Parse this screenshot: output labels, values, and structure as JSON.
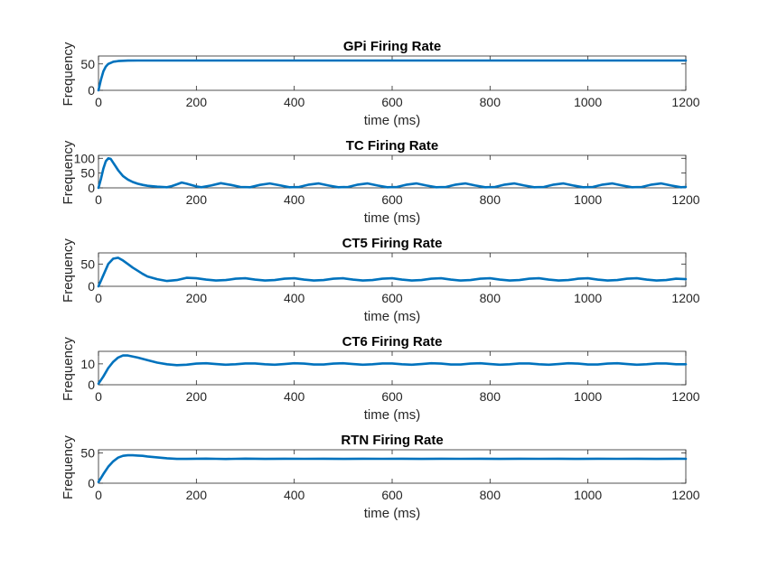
{
  "chart_data": [
    {
      "type": "line",
      "title": "GPi Firing Rate",
      "xlabel": "time (ms)",
      "ylabel": "Frequency",
      "xlim": [
        0,
        1200
      ],
      "ylim": [
        0,
        65
      ],
      "xticks": [
        0,
        200,
        400,
        600,
        800,
        1000,
        1200
      ],
      "yticks": [
        0,
        50
      ],
      "grid": false,
      "line_color": "#0072BD",
      "series": [
        {
          "x": [
            0,
            5,
            10,
            15,
            20,
            30,
            40,
            50,
            60,
            80,
            100,
            150,
            200,
            400,
            600,
            800,
            1000,
            1200
          ],
          "y": [
            0,
            20,
            36,
            45,
            50,
            54,
            55.5,
            56,
            56.3,
            56.5,
            56.5,
            56.5,
            56.5,
            56.5,
            56.5,
            56.5,
            56.5,
            56.5
          ]
        }
      ]
    },
    {
      "type": "line",
      "title": "TC Firing Rate",
      "xlabel": "time (ms)",
      "ylabel": "Frequency",
      "xlim": [
        0,
        1200
      ],
      "ylim": [
        0,
        110
      ],
      "xticks": [
        0,
        200,
        400,
        600,
        800,
        1000,
        1200
      ],
      "yticks": [
        0,
        50,
        100
      ],
      "grid": false,
      "line_color": "#0072BD",
      "series": [
        {
          "x": [
            0,
            5,
            10,
            15,
            20,
            25,
            30,
            40,
            50,
            60,
            70,
            80,
            90,
            100,
            120,
            140,
            150,
            160,
            170,
            180,
            200,
            210,
            230,
            250,
            270,
            290,
            310,
            330,
            350,
            370,
            390,
            410,
            430,
            450,
            470,
            490,
            510,
            530,
            550,
            570,
            590,
            610,
            630,
            650,
            670,
            690,
            710,
            730,
            750,
            770,
            790,
            810,
            830,
            850,
            870,
            890,
            910,
            930,
            950,
            970,
            990,
            1010,
            1030,
            1050,
            1070,
            1090,
            1110,
            1130,
            1150,
            1170,
            1190,
            1200
          ],
          "y": [
            0,
            30,
            65,
            90,
            100,
            98,
            85,
            60,
            40,
            28,
            20,
            14,
            10,
            7,
            4,
            2,
            6,
            12,
            18,
            14,
            5,
            2,
            8,
            16,
            10,
            3,
            2,
            10,
            15,
            9,
            2,
            3,
            11,
            15,
            8,
            2,
            3,
            11,
            15,
            8,
            2,
            3,
            11,
            15,
            8,
            2,
            3,
            11,
            15,
            8,
            2,
            3,
            11,
            15,
            8,
            2,
            3,
            11,
            15,
            8,
            2,
            3,
            11,
            15,
            8,
            2,
            3,
            11,
            15,
            8,
            2,
            3
          ]
        }
      ]
    },
    {
      "type": "line",
      "title": "CT5 Firing Rate",
      "xlabel": "time (ms)",
      "ylabel": "Frequency",
      "xlim": [
        0,
        1200
      ],
      "ylim": [
        0,
        75
      ],
      "xticks": [
        0,
        200,
        400,
        600,
        800,
        1000,
        1200
      ],
      "yticks": [
        0,
        50
      ],
      "grid": false,
      "line_color": "#0072BD",
      "series": [
        {
          "x": [
            0,
            10,
            20,
            30,
            40,
            50,
            60,
            70,
            80,
            90,
            100,
            120,
            140,
            160,
            180,
            200,
            220,
            240,
            260,
            280,
            300,
            320,
            340,
            360,
            380,
            400,
            420,
            440,
            460,
            480,
            500,
            520,
            540,
            560,
            580,
            600,
            620,
            640,
            660,
            680,
            700,
            720,
            740,
            760,
            780,
            800,
            820,
            840,
            860,
            880,
            900,
            920,
            940,
            960,
            980,
            1000,
            1020,
            1040,
            1060,
            1080,
            1100,
            1120,
            1140,
            1160,
            1180,
            1200
          ],
          "y": [
            0,
            25,
            50,
            62,
            64,
            58,
            50,
            42,
            35,
            28,
            22,
            16,
            12,
            14,
            19,
            18,
            15,
            13,
            14,
            17,
            18,
            15,
            13,
            14,
            17,
            18,
            15,
            13,
            14,
            17,
            18,
            15,
            13,
            14,
            17,
            18,
            15,
            13,
            14,
            17,
            18,
            15,
            13,
            14,
            17,
            18,
            15,
            13,
            14,
            17,
            18,
            15,
            13,
            14,
            17,
            18,
            15,
            13,
            14,
            17,
            18,
            15,
            13,
            14,
            17,
            16
          ]
        }
      ]
    },
    {
      "type": "line",
      "title": "CT6 Firing Rate",
      "xlabel": "time (ms)",
      "ylabel": "Frequency",
      "xlim": [
        0,
        1200
      ],
      "ylim": [
        0,
        16
      ],
      "xticks": [
        0,
        200,
        400,
        600,
        800,
        1000,
        1200
      ],
      "yticks": [
        0,
        10
      ],
      "grid": false,
      "line_color": "#0072BD",
      "series": [
        {
          "x": [
            0,
            10,
            20,
            30,
            40,
            50,
            60,
            80,
            100,
            120,
            140,
            160,
            180,
            200,
            220,
            240,
            260,
            280,
            300,
            320,
            340,
            360,
            380,
            400,
            420,
            440,
            460,
            480,
            500,
            520,
            540,
            560,
            580,
            600,
            620,
            640,
            660,
            680,
            700,
            720,
            740,
            760,
            780,
            800,
            820,
            840,
            860,
            880,
            900,
            920,
            940,
            960,
            980,
            1000,
            1020,
            1040,
            1060,
            1080,
            1100,
            1120,
            1140,
            1160,
            1180,
            1200
          ],
          "y": [
            0.5,
            4,
            8,
            11,
            13,
            14,
            14,
            13,
            11.8,
            10.6,
            9.8,
            9.4,
            9.6,
            10.1,
            10.3,
            9.9,
            9.6,
            9.8,
            10.2,
            10.2,
            9.8,
            9.6,
            9.9,
            10.3,
            10.1,
            9.7,
            9.7,
            10.1,
            10.3,
            9.9,
            9.6,
            9.8,
            10.2,
            10.2,
            9.8,
            9.6,
            9.9,
            10.3,
            10.1,
            9.7,
            9.7,
            10.1,
            10.3,
            9.9,
            9.6,
            9.8,
            10.2,
            10.2,
            9.8,
            9.6,
            9.9,
            10.3,
            10.1,
            9.7,
            9.7,
            10.1,
            10.3,
            9.9,
            9.6,
            9.8,
            10.2,
            10.2,
            9.8,
            9.8
          ]
        }
      ]
    },
    {
      "type": "line",
      "title": "RTN Firing Rate",
      "xlabel": "time (ms)",
      "ylabel": "Frequency",
      "xlim": [
        0,
        1200
      ],
      "ylim": [
        0,
        55
      ],
      "xticks": [
        0,
        200,
        400,
        600,
        800,
        1000,
        1200
      ],
      "yticks": [
        0,
        50
      ],
      "grid": false,
      "line_color": "#0072BD",
      "series": [
        {
          "x": [
            0,
            10,
            20,
            30,
            40,
            50,
            60,
            70,
            80,
            90,
            100,
            120,
            140,
            160,
            180,
            200,
            220,
            240,
            260,
            280,
            300,
            340,
            380,
            420,
            460,
            500,
            540,
            580,
            620,
            660,
            700,
            740,
            780,
            820,
            860,
            900,
            940,
            980,
            1020,
            1060,
            1100,
            1140,
            1180,
            1200
          ],
          "y": [
            2,
            15,
            27,
            36,
            42,
            45,
            46,
            46,
            45.5,
            45,
            44,
            42.5,
            41,
            40,
            40,
            40.3,
            40.5,
            40.2,
            39.9,
            40.1,
            40.4,
            40,
            40.3,
            40.1,
            40.3,
            40,
            40.3,
            40.1,
            40.3,
            40,
            40.3,
            40.1,
            40.3,
            40,
            40.3,
            40.1,
            40.3,
            40,
            40.3,
            40.1,
            40.3,
            40,
            40.3,
            40.2
          ]
        }
      ]
    }
  ]
}
